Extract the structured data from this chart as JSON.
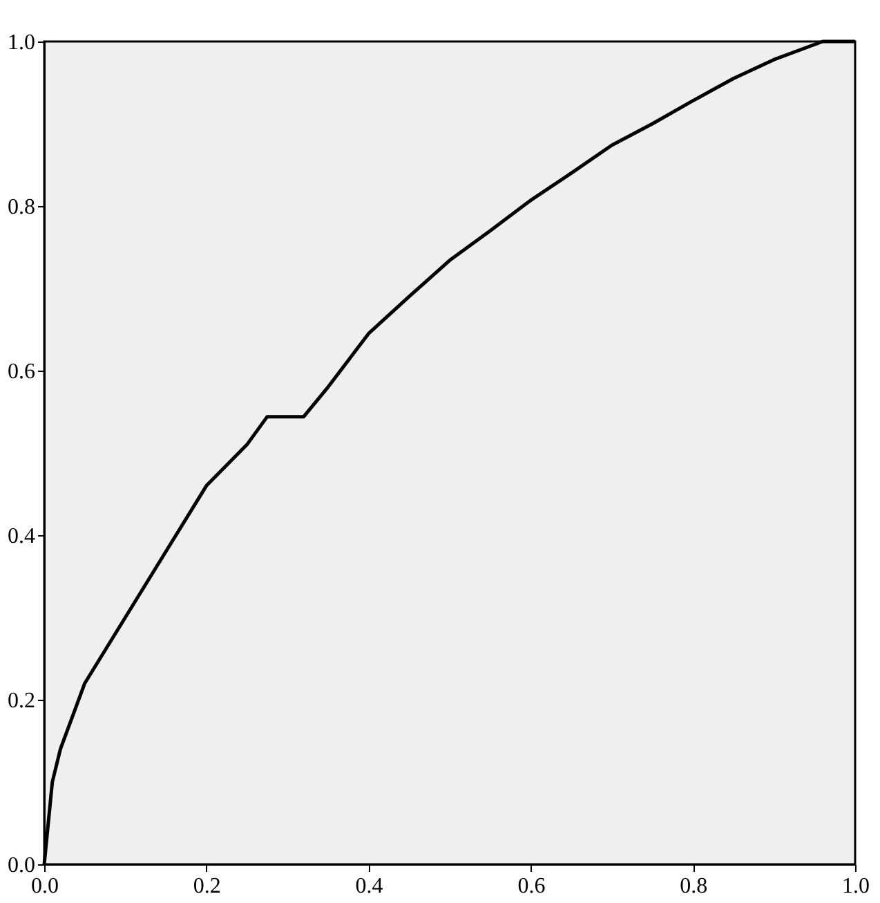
{
  "chart_data": {
    "type": "line",
    "x": [
      0,
      0.005,
      0.01,
      0.02,
      0.05,
      0.1,
      0.15,
      0.2,
      0.25,
      0.275,
      0.3,
      0.32,
      0.35,
      0.4,
      0.45,
      0.5,
      0.55,
      0.6,
      0.65,
      0.7,
      0.75,
      0.8,
      0.85,
      0.9,
      0.96,
      1
    ],
    "series": [
      {
        "color": "#000000",
        "values": [
          0,
          0.05,
          0.1,
          0.14,
          0.22,
          0.3,
          0.38,
          0.46,
          0.51,
          0.544,
          0.544,
          0.544,
          0.58,
          0.645,
          0.69,
          0.734,
          0.77,
          0.807,
          0.84,
          0.874,
          0.9,
          0.928,
          0.955,
          0.978,
          1,
          1
        ]
      }
    ],
    "xlim": [
      0,
      1
    ],
    "ylim": [
      0,
      1
    ],
    "xticks": [
      {
        "value": 0,
        "label": "0.0"
      },
      0.2,
      0.4,
      0.6,
      0.8,
      {
        "value": 1,
        "label": "1.0"
      }
    ],
    "yticks": [
      {
        "value": 0,
        "label": "0.0"
      },
      0.2,
      0.4,
      0.6,
      0.8,
      {
        "value": 1,
        "label": "1.0"
      }
    ],
    "grid": false,
    "marker": "none",
    "line_style": "solid"
  }
}
